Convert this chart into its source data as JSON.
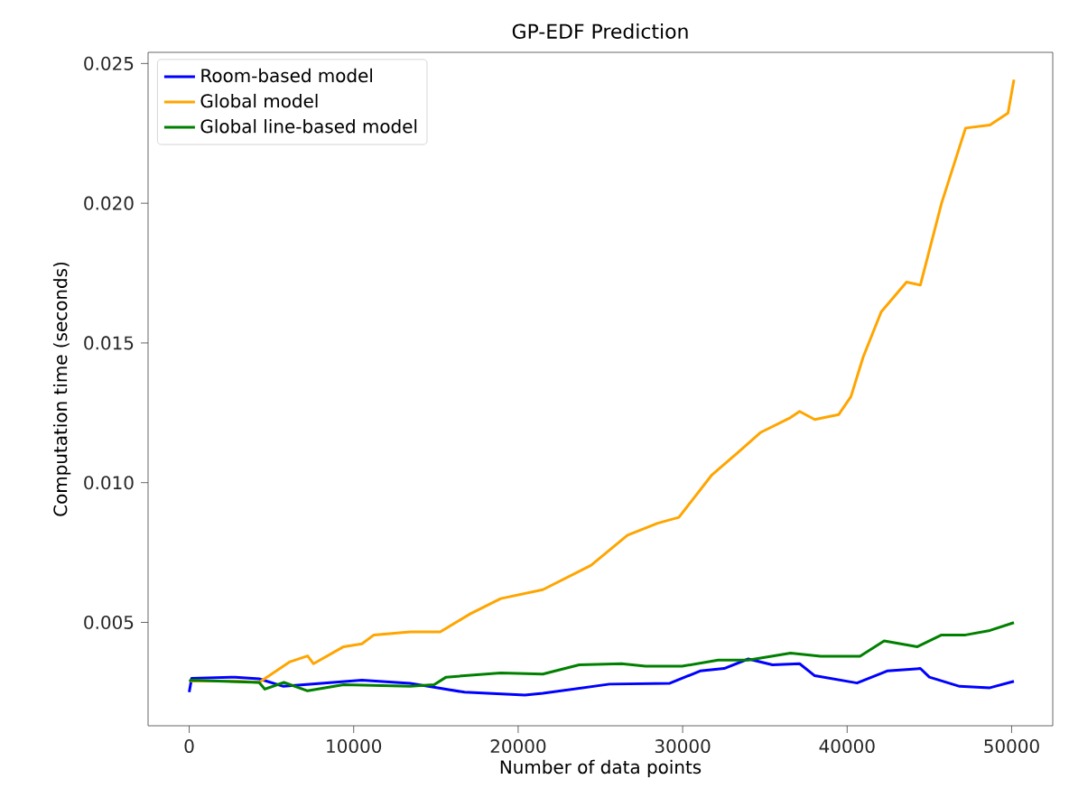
{
  "chart_data": {
    "type": "line",
    "title": "GP-EDF Prediction",
    "xlabel": "Number of data points",
    "ylabel": "Computation time (seconds)",
    "xlim": [
      -2500,
      52500
    ],
    "ylim": [
      0.0013,
      0.0254
    ],
    "xticks": [
      0,
      10000,
      20000,
      30000,
      40000,
      50000
    ],
    "yticks": [
      0.005,
      {
        "value": 0.01,
        "label": "0.010"
      },
      0.015,
      {
        "value": 0.02,
        "label": "0.020"
      },
      0.025
    ],
    "grid": false,
    "legend": "top left",
    "marker": "none",
    "line_style": "solid",
    "series": [
      {
        "name": "Room-based model",
        "color": "#0000ff",
        "x": [
          0,
          150,
          2800,
          4250,
          5730,
          10500,
          13430,
          16740,
          20410,
          21500,
          25550,
          29220,
          31060,
          32520,
          33990,
          35460,
          37110,
          38030,
          40600,
          42430,
          44450,
          45000,
          46840,
          48680,
          50140
        ],
        "values": [
          0.0025,
          0.003,
          0.00304,
          0.00298,
          0.00271,
          0.00293,
          0.00282,
          0.0025,
          0.0024,
          0.00246,
          0.00279,
          0.00282,
          0.00326,
          0.00335,
          0.00369,
          0.00348,
          0.00352,
          0.00309,
          0.00283,
          0.00326,
          0.00335,
          0.00304,
          0.00271,
          0.00266,
          0.00289
        ]
      },
      {
        "name": "Global model",
        "color": "#ffa500",
        "x": [
          0,
          150,
          3000,
          4250,
          6090,
          7200,
          7560,
          9390,
          10500,
          11230,
          13430,
          15260,
          17100,
          18940,
          21500,
          24420,
          26650,
          28480,
          29770,
          31780,
          33260,
          34720,
          36560,
          37110,
          38030,
          39490,
          40230,
          40970,
          42070,
          43610,
          44450,
          45740,
          47200,
          48680,
          49780,
          50140
        ],
        "values": [
          0.0029,
          0.0029,
          0.0029,
          0.00285,
          0.00358,
          0.0038,
          0.00352,
          0.00413,
          0.00423,
          0.00455,
          0.00466,
          0.00466,
          0.00531,
          0.00585,
          0.00617,
          0.00704,
          0.00812,
          0.00855,
          0.00876,
          0.01028,
          0.01103,
          0.01179,
          0.01233,
          0.01255,
          0.01226,
          0.01244,
          0.01308,
          0.01449,
          0.01611,
          0.01718,
          0.01707,
          0.02,
          0.02269,
          0.0228,
          0.02323,
          0.02442
        ]
      },
      {
        "name": "Global line-based model",
        "color": "#008000",
        "x": [
          0,
          150,
          4250,
          4600,
          5760,
          7200,
          9390,
          13430,
          14890,
          15620,
          18940,
          21500,
          23710,
          26280,
          27750,
          29960,
          32160,
          33990,
          36560,
          38390,
          40780,
          42250,
          44270,
          45740,
          47200,
          48680,
          50140
        ],
        "values": [
          0.0029,
          0.00293,
          0.00285,
          0.00261,
          0.00285,
          0.00255,
          0.00277,
          0.00271,
          0.00277,
          0.00304,
          0.00319,
          0.00315,
          0.00348,
          0.00352,
          0.00343,
          0.00343,
          0.00365,
          0.00365,
          0.0039,
          0.00379,
          0.00379,
          0.00434,
          0.00413,
          0.00455,
          0.00455,
          0.00471,
          0.00499
        ]
      }
    ]
  }
}
